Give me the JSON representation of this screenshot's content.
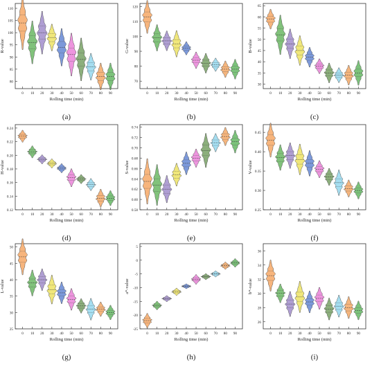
{
  "chart_data": [
    {
      "type": "violin",
      "panel_label": "(a)",
      "xlabel": "Rolling time (min)",
      "ylabel": "R-value",
      "categories": [
        "0",
        "10",
        "20",
        "30",
        "40",
        "50",
        "60",
        "70",
        "80",
        "90"
      ],
      "medians": [
        104,
        96,
        100,
        98,
        94,
        91,
        89,
        86,
        82,
        82
      ],
      "spreads": [
        5,
        4,
        4,
        2.5,
        3.5,
        4,
        4,
        2.5,
        2.5,
        2.5
      ],
      "ylim": [
        77,
        112
      ],
      "yticks": [
        80,
        85,
        90,
        95,
        100,
        105,
        110
      ],
      "colors": [
        "#f5a35c",
        "#62b35a",
        "#9b86c8",
        "#ece15a",
        "#5b7fd1",
        "#e87bd6",
        "#6f9b5b",
        "#8ed6ee",
        "#f2a25c",
        "#5bb35a"
      ]
    },
    {
      "type": "violin",
      "panel_label": "(b)",
      "xlabel": "Rolling time (min)",
      "ylabel": "G-value",
      "categories": [
        "0",
        "10",
        "20",
        "30",
        "40",
        "50",
        "60",
        "70",
        "80",
        "90"
      ],
      "medians": [
        113,
        99,
        97,
        95,
        92,
        84,
        82,
        81,
        78,
        78
      ],
      "spreads": [
        5,
        4,
        3,
        4,
        2,
        2.5,
        3,
        2,
        2.5,
        3
      ],
      "ylim": [
        65,
        122
      ],
      "yticks": [
        70,
        80,
        90,
        100,
        110,
        120
      ],
      "colors": [
        "#f5a35c",
        "#62b35a",
        "#9b86c8",
        "#ece15a",
        "#5b7fd1",
        "#e87bd6",
        "#6f9b5b",
        "#8ed6ee",
        "#f2a25c",
        "#5bb35a"
      ]
    },
    {
      "type": "violin",
      "panel_label": "(c)",
      "xlabel": "Rolling time (min)",
      "ylabel": "B-value",
      "categories": [
        "0",
        "10",
        "20",
        "30",
        "40",
        "50",
        "60",
        "70",
        "80",
        "90"
      ],
      "medians": [
        59,
        52,
        48,
        45,
        42,
        38,
        35,
        34,
        34,
        35
      ],
      "spreads": [
        2,
        4,
        3,
        3,
        2,
        1.5,
        2,
        1.5,
        2,
        2.5
      ],
      "ylim": [
        28,
        66
      ],
      "yticks": [
        30,
        35,
        40,
        45,
        50,
        55,
        60,
        65
      ],
      "colors": [
        "#f5a35c",
        "#62b35a",
        "#9b86c8",
        "#ece15a",
        "#5b7fd1",
        "#e87bd6",
        "#6f9b5b",
        "#8ed6ee",
        "#f2a25c",
        "#5bb35a"
      ]
    },
    {
      "type": "violin",
      "panel_label": "(d)",
      "xlabel": "Rolling time (min)",
      "ylabel": "H-value",
      "categories": [
        "0",
        "10",
        "20",
        "30",
        "40",
        "50",
        "60",
        "70",
        "80",
        "90"
      ],
      "medians": [
        0.228,
        0.205,
        0.194,
        0.188,
        0.181,
        0.167,
        0.165,
        0.157,
        0.137,
        0.137
      ],
      "spreads": [
        0.004,
        0.004,
        0.003,
        0.003,
        0.003,
        0.006,
        0.003,
        0.004,
        0.006,
        0.005
      ],
      "ylim": [
        0.12,
        0.245
      ],
      "yticks": [
        0.12,
        0.14,
        0.16,
        0.18,
        0.2,
        0.22,
        0.24
      ],
      "colors": [
        "#f5a35c",
        "#62b35a",
        "#9b86c8",
        "#ece15a",
        "#5b7fd1",
        "#e87bd6",
        "#6f9b5b",
        "#8ed6ee",
        "#f2a25c",
        "#5bb35a"
      ]
    },
    {
      "type": "violin",
      "panel_label": "(e)",
      "xlabel": "Rolling time (min)",
      "ylabel": "S-value",
      "categories": [
        "0",
        "10",
        "20",
        "30",
        "40",
        "50",
        "60",
        "70",
        "80",
        "90"
      ],
      "medians": [
        0.635,
        0.628,
        0.62,
        0.648,
        0.67,
        0.68,
        0.695,
        0.71,
        0.722,
        0.712
      ],
      "spreads": [
        0.02,
        0.018,
        0.012,
        0.01,
        0.01,
        0.008,
        0.015,
        0.008,
        0.008,
        0.01
      ],
      "ylim": [
        0.58,
        0.745
      ],
      "yticks": [
        0.58,
        0.6,
        0.62,
        0.64,
        0.66,
        0.68,
        0.7,
        0.72,
        0.74
      ],
      "colors": [
        "#f5a35c",
        "#62b35a",
        "#9b86c8",
        "#ece15a",
        "#5b7fd1",
        "#e87bd6",
        "#6f9b5b",
        "#8ed6ee",
        "#f2a25c",
        "#5bb35a"
      ]
    },
    {
      "type": "violin",
      "panel_label": "(f)",
      "xlabel": "Rolling time (min)",
      "ylabel": "V-value",
      "categories": [
        "0",
        "10",
        "20",
        "30",
        "40",
        "50",
        "60",
        "70",
        "80",
        "90"
      ],
      "medians": [
        0.43,
        0.385,
        0.39,
        0.38,
        0.37,
        0.355,
        0.335,
        0.32,
        0.305,
        0.3
      ],
      "spreads": [
        0.02,
        0.015,
        0.015,
        0.018,
        0.015,
        0.01,
        0.01,
        0.015,
        0.01,
        0.01
      ],
      "ylim": [
        0.25,
        0.47
      ],
      "yticks": [
        0.25,
        0.3,
        0.35,
        0.4,
        0.45
      ],
      "colors": [
        "#f5a35c",
        "#62b35a",
        "#9b86c8",
        "#ece15a",
        "#5b7fd1",
        "#e87bd6",
        "#6f9b5b",
        "#8ed6ee",
        "#f2a25c",
        "#5bb35a"
      ]
    },
    {
      "type": "violin",
      "panel_label": "(g)",
      "xlabel": "Rolling time (min)",
      "ylabel": "L-value",
      "categories": [
        "0",
        "10",
        "20",
        "30",
        "40",
        "50",
        "60",
        "70",
        "80",
        "90"
      ],
      "medians": [
        47,
        39,
        40,
        37,
        36,
        34,
        32,
        31,
        31,
        30
      ],
      "spreads": [
        2.5,
        1.8,
        1.5,
        2,
        1.5,
        1.5,
        1,
        1.5,
        1,
        1
      ],
      "ylim": [
        25,
        51
      ],
      "yticks": [
        25,
        30,
        35,
        40,
        45,
        50
      ],
      "colors": [
        "#f5a35c",
        "#62b35a",
        "#9b86c8",
        "#ece15a",
        "#5b7fd1",
        "#e87bd6",
        "#6f9b5b",
        "#8ed6ee",
        "#f2a25c",
        "#5bb35a"
      ]
    },
    {
      "type": "violin",
      "panel_label": "(h)",
      "xlabel": "Rolling time (min)",
      "ylabel": "a*-value",
      "categories": [
        "0",
        "10",
        "20",
        "30",
        "40",
        "50",
        "60",
        "70",
        "80",
        "90"
      ],
      "medians": [
        -22,
        -16.5,
        -14,
        -11.5,
        -9.5,
        -7,
        -6,
        -5,
        -2,
        -1
      ],
      "spreads": [
        1.2,
        0.7,
        0.5,
        0.6,
        0.4,
        0.8,
        0.5,
        0.5,
        0.6,
        0.7
      ],
      "ylim": [
        -25,
        6
      ],
      "yticks": [
        -25,
        -20,
        -15,
        -10,
        -5,
        0,
        5
      ],
      "colors": [
        "#f5a35c",
        "#62b35a",
        "#9b86c8",
        "#ece15a",
        "#5b7fd1",
        "#e87bd6",
        "#6f9b5b",
        "#8ed6ee",
        "#f2a25c",
        "#5bb35a"
      ]
    },
    {
      "type": "violin",
      "panel_label": "(i)",
      "xlabel": "Rolling time (min)",
      "ylabel": "b*-value",
      "categories": [
        "0",
        "10",
        "20",
        "30",
        "40",
        "50",
        "60",
        "70",
        "80",
        "90"
      ],
      "medians": [
        32.5,
        30,
        28.5,
        29.5,
        28.8,
        29.3,
        27.8,
        28.2,
        28,
        27.6
      ],
      "spreads": [
        1,
        0.6,
        0.8,
        1,
        0.7,
        0.7,
        0.7,
        0.7,
        0.7,
        0.6
      ],
      "ylim": [
        25,
        37
      ],
      "yticks": [
        26,
        28,
        30,
        32,
        34,
        36
      ],
      "colors": [
        "#f5a35c",
        "#62b35a",
        "#9b86c8",
        "#ece15a",
        "#5b7fd1",
        "#e87bd6",
        "#6f9b5b",
        "#8ed6ee",
        "#f2a25c",
        "#5bb35a"
      ]
    }
  ]
}
